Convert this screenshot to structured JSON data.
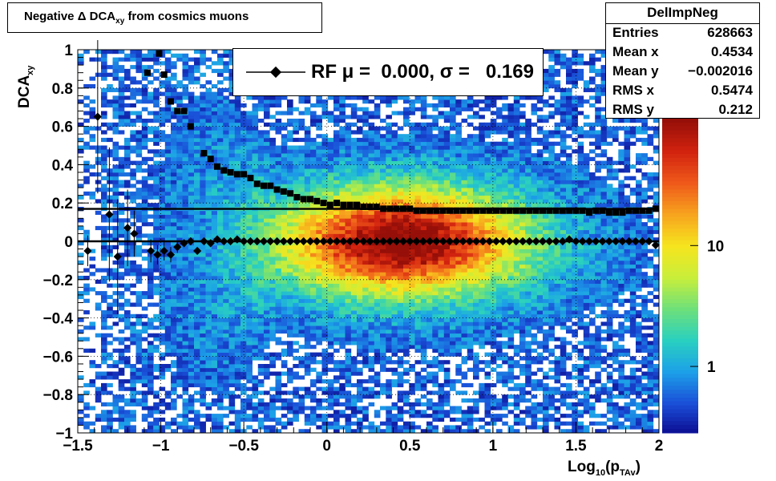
{
  "chart_data": {
    "type": "heatmap",
    "title": "Negative Δ DCA",
    "title_sub": "xy",
    "title_suffix": "from cosmics muons",
    "xlabel": "Log",
    "xlabel_sub": "10",
    "xlabel_mid": "(p",
    "xlabel_sub2": "TAv",
    "xlabel_end": ")",
    "ylabel": "DCA",
    "ylabel_sub": "xy",
    "xlim": [
      -1.5,
      2
    ],
    "ylim": [
      -1,
      1
    ],
    "x_ticks": [
      "−1.5",
      "−1",
      "−0.5",
      "0",
      "0.5",
      "1",
      "1.5",
      "2"
    ],
    "x_tick_values": [
      -1.5,
      -1,
      -0.5,
      0,
      0.5,
      1,
      1.5,
      2
    ],
    "y_ticks": [
      "−1",
      "−0.8",
      "−0.6",
      "−0.4",
      "−0.2",
      "0",
      "0.2",
      "0.4",
      "0.6",
      "0.8",
      "1"
    ],
    "y_tick_values": [
      -1,
      -0.8,
      -0.6,
      -0.4,
      -0.2,
      0,
      0.2,
      0.4,
      0.6,
      0.8,
      1
    ],
    "grid": true,
    "z_scale": "log",
    "z_ticks": [
      "1",
      "10"
    ],
    "z_tick_values": [
      1,
      10
    ],
    "colorscale": [
      "#0b0a8f",
      "#1a4fd8",
      "#1ca0e8",
      "#29d0c0",
      "#6ee07a",
      "#c8ee3a",
      "#f6e51e",
      "#f7a41e",
      "#ef5a1a",
      "#d2230f",
      "#960f08"
    ],
    "sigma_series": {
      "x": [
        -1.01,
        -0.98,
        -0.94,
        -0.9,
        -0.86,
        -0.82,
        -0.74,
        -0.7,
        -0.66,
        -0.62,
        -0.58,
        -0.54,
        -0.5,
        -0.46,
        -0.42,
        -0.38,
        -0.34,
        -0.3,
        -0.26,
        -0.22,
        -0.18,
        -0.14,
        -0.1,
        -0.06,
        -0.02,
        0.02,
        0.06,
        0.1,
        0.14,
        0.18,
        0.22,
        0.26,
        0.3,
        0.34,
        0.38,
        0.42,
        0.46,
        0.5,
        0.54,
        0.58,
        0.62,
        0.66,
        0.7,
        0.74,
        0.78,
        0.82,
        0.86,
        0.9,
        0.94,
        0.98,
        1.02,
        1.06,
        1.1,
        1.14,
        1.18,
        1.22,
        1.26,
        1.3,
        1.34,
        1.38,
        1.42,
        1.46,
        1.5,
        1.54,
        1.58,
        1.62,
        1.66,
        1.7,
        1.74,
        1.78,
        1.82,
        1.86,
        1.9,
        1.94,
        1.98
      ],
      "y": [
        0.98,
        0.87,
        0.73,
        0.68,
        0.68,
        0.6,
        0.46,
        0.43,
        0.39,
        0.37,
        0.36,
        0.35,
        0.35,
        0.33,
        0.3,
        0.29,
        0.29,
        0.27,
        0.26,
        0.25,
        0.23,
        0.22,
        0.22,
        0.21,
        0.2,
        0.19,
        0.2,
        0.19,
        0.19,
        0.19,
        0.18,
        0.18,
        0.18,
        0.17,
        0.17,
        0.17,
        0.17,
        0.17,
        0.16,
        0.16,
        0.16,
        0.16,
        0.16,
        0.16,
        0.16,
        0.16,
        0.16,
        0.16,
        0.16,
        0.16,
        0.16,
        0.16,
        0.16,
        0.16,
        0.16,
        0.16,
        0.16,
        0.16,
        0.16,
        0.16,
        0.16,
        0.16,
        0.16,
        0.16,
        0.15,
        0.16,
        0.16,
        0.15,
        0.15,
        0.15,
        0.16,
        0.16,
        0.16,
        0.16,
        0.17
      ]
    },
    "sigma_extra": {
      "x": [
        -1.08
      ],
      "y": [
        0.88
      ]
    },
    "mean_series": {
      "x": [
        -1.44,
        -1.38,
        -1.31,
        -1.26,
        -1.2,
        -1.16,
        -1.06,
        -1.02,
        -0.98,
        -0.94,
        -0.9,
        -0.86,
        -0.82,
        -0.78,
        -0.74,
        -0.7,
        -0.66,
        -0.62,
        -0.58,
        -0.54,
        -0.5,
        -0.46,
        -0.42,
        -0.38,
        -0.34,
        -0.3,
        -0.26,
        -0.22,
        -0.18,
        -0.14,
        -0.1,
        -0.06,
        -0.02,
        0.02,
        0.06,
        0.1,
        0.14,
        0.18,
        0.22,
        0.26,
        0.3,
        0.34,
        0.38,
        0.42,
        0.46,
        0.5,
        0.54,
        0.58,
        0.62,
        0.66,
        0.7,
        0.74,
        0.78,
        0.82,
        0.86,
        0.9,
        0.94,
        0.98,
        1.02,
        1.06,
        1.1,
        1.14,
        1.18,
        1.22,
        1.26,
        1.3,
        1.34,
        1.38,
        1.42,
        1.46,
        1.5,
        1.54,
        1.58,
        1.62,
        1.66,
        1.7,
        1.74,
        1.78,
        1.82,
        1.86,
        1.9,
        1.94,
        1.98
      ],
      "y": [
        -0.05,
        0.65,
        0.14,
        -0.08,
        0.07,
        0.04,
        -0.05,
        -0.07,
        -0.05,
        -0.07,
        -0.03,
        -0.01,
        0,
        -0.05,
        0,
        -0.01,
        0.01,
        0,
        0,
        0.01,
        0,
        0,
        0,
        0,
        0,
        0,
        0,
        0,
        0,
        0,
        0,
        0,
        0,
        0,
        0,
        0,
        0,
        0,
        0,
        0,
        0,
        0,
        0,
        0,
        0,
        0,
        0,
        0,
        0,
        0,
        0,
        0,
        0,
        0,
        0,
        0,
        0,
        0,
        0,
        0,
        0,
        0,
        0,
        0,
        0,
        0,
        0,
        0,
        0,
        0.01,
        0,
        0,
        0,
        0,
        0,
        0,
        0,
        0,
        0,
        0,
        0,
        0,
        -0.02
      ]
    },
    "mean_errors": [
      0.08,
      0.4,
      0.35,
      0.3,
      0.2,
      0.12,
      0.06,
      0.05,
      0.05,
      0.04,
      0.03,
      0.02,
      0.02,
      0.02,
      0.01,
      0.01,
      0.01,
      0.01,
      0.01,
      0.01,
      0.01,
      0.01,
      0.01,
      0.01,
      0.01,
      0.01,
      0.01,
      0.01,
      0.01,
      0.01,
      0.01,
      0.01,
      0.01,
      0.01,
      0.01,
      0.01,
      0.01,
      0.01,
      0.01,
      0.01,
      0.01,
      0.01,
      0.01,
      0.01,
      0.01,
      0.01,
      0.01,
      0.01,
      0.01,
      0.01,
      0.01,
      0.01,
      0.01,
      0.01,
      0.01,
      0.01,
      0.01,
      0.01,
      0.01,
      0.01,
      0.01,
      0.01,
      0.01,
      0.01,
      0.01,
      0.01,
      0.01,
      0.01,
      0.01,
      0.01,
      0.01,
      0.01,
      0.01,
      0.01,
      0.01,
      0.01,
      0.01,
      0.01,
      0.01,
      0.01,
      0.01,
      0.01,
      0.01
    ],
    "fit_lines": [
      {
        "y": 0.0
      },
      {
        "y": 0.169
      }
    ],
    "fit_legend": "RF μ =  0.000, σ =   0.169",
    "stats": {
      "name": "DelImpNeg",
      "rows": [
        {
          "k": "Entries",
          "v": "628663"
        },
        {
          "k": "Mean x",
          "v": "0.4534"
        },
        {
          "k": "Mean y",
          "v": "−0.002016"
        },
        {
          "k": "RMS x",
          "v": "0.5474"
        },
        {
          "k": "RMS y",
          "v": "0.212"
        }
      ]
    }
  }
}
